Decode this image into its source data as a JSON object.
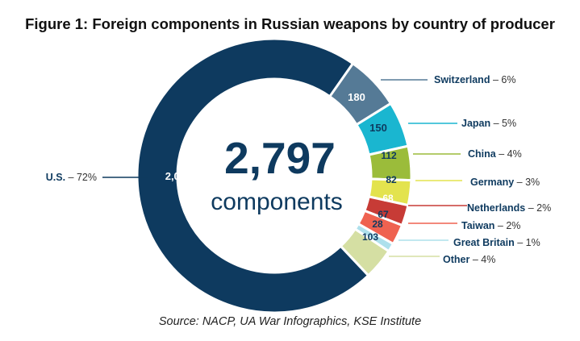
{
  "title": "Figure 1: Foreign components in Russian weapons by country of producer",
  "source": "Source: NACP, UA War Infographics, KSE Institute",
  "chart_data": {
    "type": "pie",
    "center_total": "2,797",
    "center_unit": "components",
    "slices": [
      {
        "name": "U.S.",
        "value": 2007,
        "label": "2,007",
        "percent": "72%",
        "color": "#0e3a5f",
        "text_color": "#ffffff"
      },
      {
        "name": "Switzerland",
        "value": 180,
        "label": "180",
        "percent": "6%",
        "color": "#557a96",
        "text_color": "#ffffff"
      },
      {
        "name": "Japan",
        "value": 150,
        "label": "150",
        "percent": "5%",
        "color": "#1ab6d0",
        "text_color": "#0e3a5f"
      },
      {
        "name": "China",
        "value": 112,
        "label": "112",
        "percent": "4%",
        "color": "#9bbc3a",
        "text_color": "#0e3a5f"
      },
      {
        "name": "Germany",
        "value": 82,
        "label": "82",
        "percent": "3%",
        "color": "#e3e34e",
        "text_color": "#0e3a5f"
      },
      {
        "name": "Netherlands",
        "value": 68,
        "label": "68",
        "percent": "2%",
        "color": "#c73b36",
        "text_color": "#ffffff"
      },
      {
        "name": "Taiwan",
        "value": 67,
        "label": "67",
        "percent": "2%",
        "color": "#ef6250",
        "text_color": "#0e3a5f"
      },
      {
        "name": "Great Britain",
        "value": 28,
        "label": "28",
        "percent": "1%",
        "color": "#aee0ec",
        "text_color": "#0e3a5f"
      },
      {
        "name": "Other",
        "value": 103,
        "label": "103",
        "percent": "4%",
        "color": "#d5dfa3",
        "text_color": "#0e3a5f"
      }
    ]
  }
}
